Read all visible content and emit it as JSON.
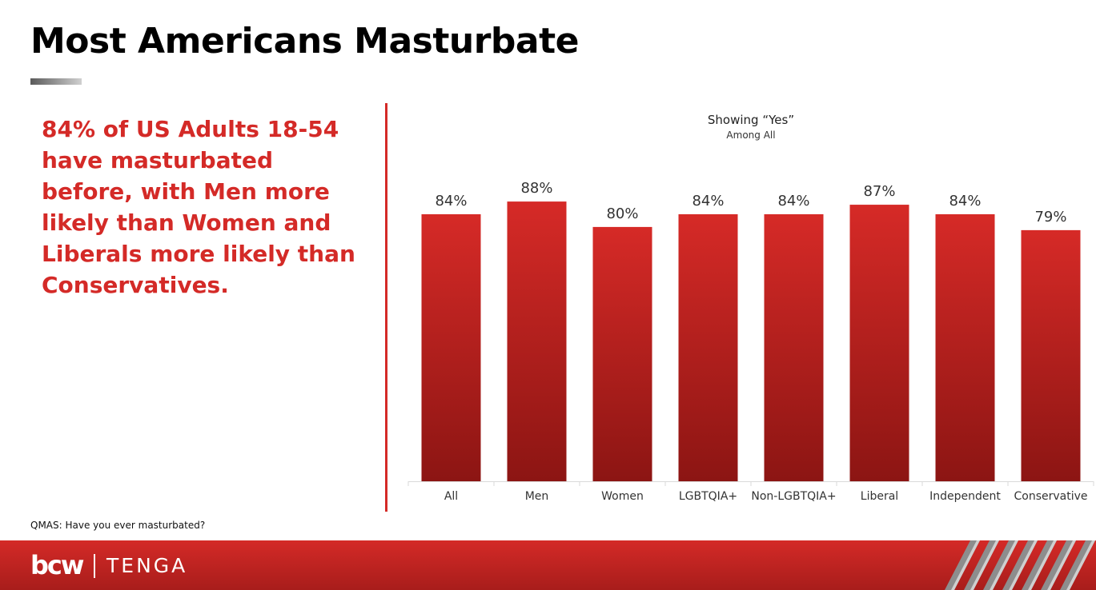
{
  "page": {
    "title": "Most Americans Masturbate",
    "headline": "84% of US Adults 18-54 have masturbated before, with Men more likely than Women and Liberals more likely than Conservatives.",
    "footnote": "QMAS: Have you ever masturbated?",
    "footer": {
      "logo_left": "bcw",
      "logo_right": "TENGA"
    }
  },
  "colors": {
    "accent": "#d42a27",
    "bar_top": "#d62a27",
    "bar_bottom": "#8c1513"
  },
  "chart_data": {
    "type": "bar",
    "title": "Showing “Yes”",
    "subtitle": "Among All",
    "categories": [
      "All",
      "Men",
      "Women",
      "LGBTQIA+",
      "Non-LGBTQIA+",
      "Liberal",
      "Independent",
      "Conservative"
    ],
    "values": [
      84,
      88,
      80,
      84,
      84,
      87,
      84,
      79
    ],
    "data_labels": [
      "84%",
      "88%",
      "80%",
      "84%",
      "84%",
      "87%",
      "84%",
      "79%"
    ],
    "ylim": [
      0,
      100
    ],
    "grid": false,
    "legend": "none"
  }
}
